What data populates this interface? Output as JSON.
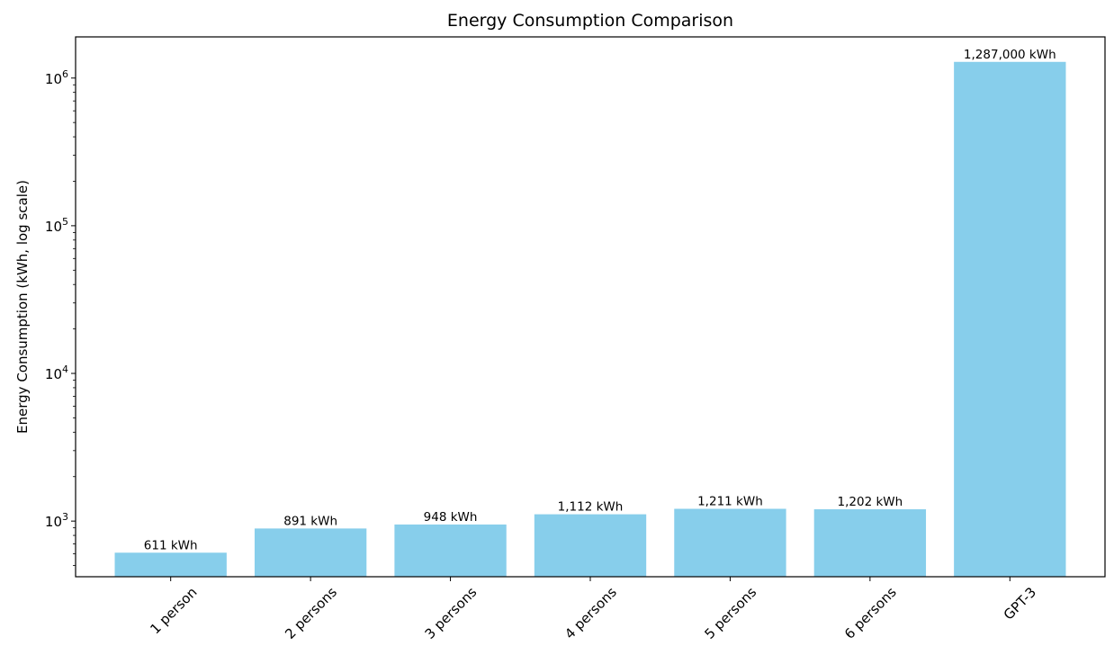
{
  "chart_data": {
    "type": "bar",
    "title": "Energy Consumption Comparison",
    "xlabel": "",
    "ylabel": "Energy Consumption (kWh, log scale)",
    "yscale": "log",
    "ylim": [
      420,
      1900000
    ],
    "categories": [
      "1 person",
      "2 persons",
      "3 persons",
      "4 persons",
      "5 persons",
      "6 persons",
      "GPT-3"
    ],
    "values": [
      611,
      891,
      948,
      1112,
      1211,
      1202,
      1287000
    ],
    "data_labels": [
      "611 kWh",
      "891 kWh",
      "948 kWh",
      "1,112 kWh",
      "1,211 kWh",
      "1,202 kWh",
      "1,287,000 kWh"
    ],
    "y_ticks": [
      {
        "value": 1000,
        "base": "10",
        "exp": "3"
      },
      {
        "value": 10000,
        "base": "10",
        "exp": "4"
      },
      {
        "value": 100000,
        "base": "10",
        "exp": "5"
      },
      {
        "value": 1000000,
        "base": "10",
        "exp": "6"
      }
    ],
    "bar_color": "#87ceeb",
    "grid": false,
    "legend": "none"
  }
}
